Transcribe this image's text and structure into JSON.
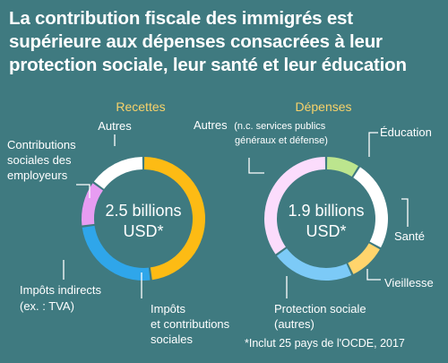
{
  "title": "La contribution fiscale des immigrés est supérieure aux dépenses consacrées à leur protection sociale, leur santé et leur éducation",
  "footnote": "*Inclut 25 pays de l'OCDE, 2017",
  "colors": {
    "background": "#3f7a80",
    "heading": "#f7d26a"
  },
  "chart_data": [
    {
      "type": "pie",
      "title": "Recettes",
      "center_value": "2.5 billions",
      "center_unit": "USD*",
      "slices": [
        {
          "label": "Impôts et contributions sociales",
          "value": 48,
          "color": "#fdbb14"
        },
        {
          "label": "Impôts indirects (ex. : TVA)",
          "value": 25,
          "color": "#2fa6ea"
        },
        {
          "label": "Contributions sociales des employeurs",
          "value": 12,
          "color": "#e79cf2"
        },
        {
          "label": "Autres",
          "value": 15,
          "color": "#ffffff"
        }
      ]
    },
    {
      "type": "pie",
      "title": "Dépenses",
      "center_value": "1.9 billions",
      "center_unit": "USD*",
      "slices": [
        {
          "label": "Éducation",
          "value": 9,
          "color": "#bce58e"
        },
        {
          "label": "Santé",
          "value": 24,
          "color": "#ffffff"
        },
        {
          "label": "Vieillesse",
          "value": 10,
          "color": "#ffd46c"
        },
        {
          "label": "Protection sociale (autres)",
          "value": 22,
          "color": "#7ccaf7"
        },
        {
          "label": "Autres (n.c. services publics généraux et défense)",
          "value": 35,
          "color": "#fbdcfc"
        }
      ]
    }
  ],
  "labels": {
    "recettes": {
      "autres": "Autres",
      "contrib_1": "Contributions",
      "contrib_2": "sociales des",
      "contrib_3": "employeurs",
      "indirects_1": "Impôts indirects",
      "indirects_2": "(ex. : TVA)",
      "impots_1": "Impôts",
      "impots_2": "et contributions",
      "impots_3": "sociales"
    },
    "depenses": {
      "autres_1": "Autres",
      "autres_1b": "(n.c. services publics",
      "autres_2": "généraux et défense)",
      "education": "Éducation",
      "sante": "Santé",
      "vieillesse": "Vieillesse",
      "protection_1": "Protection sociale",
      "protection_2": "(autres)"
    }
  }
}
